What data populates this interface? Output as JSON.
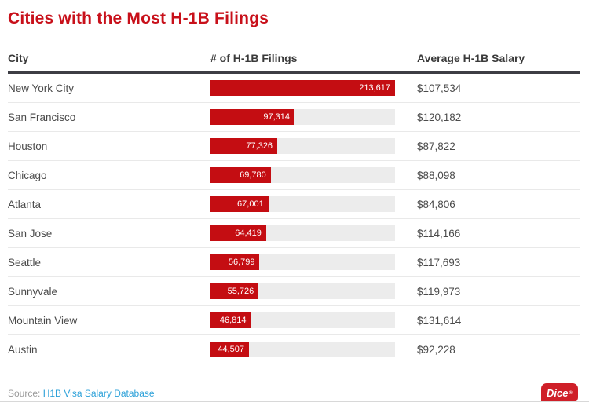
{
  "title": "Cities with the Most H-1B Filings",
  "columns": {
    "city": "City",
    "filings": "# of H-1B Filings",
    "salary": "Average H-1B Salary"
  },
  "source": {
    "label": "Source:",
    "link": "H1B Visa Salary Database"
  },
  "logo": {
    "text": "Dice",
    "mark": "®"
  },
  "colors": {
    "title_red": "#c8101a",
    "bar_red": "#c40d12",
    "bar_track_gray": "#ececec",
    "link_blue": "#2da1d9",
    "logo_red": "#cf1f28"
  },
  "chart_data": {
    "type": "bar",
    "orientation": "horizontal",
    "title": "Cities with the Most H-1B Filings",
    "categories": [
      "New York City",
      "San Francisco",
      "Houston",
      "Chicago",
      "Atlanta",
      "San Jose",
      "Seattle",
      "Sunnyvale",
      "Mountain View",
      "Austin"
    ],
    "series": [
      {
        "name": "# of H-1B Filings",
        "values": [
          213617,
          97314,
          77326,
          69780,
          67001,
          64419,
          56799,
          55726,
          46814,
          44507
        ],
        "labels": [
          "213,617",
          "97,314",
          "77,326",
          "69,780",
          "67,001",
          "64,419",
          "56,799",
          "55,726",
          "46,814",
          "44,507"
        ]
      },
      {
        "name": "Average H-1B Salary",
        "values": [
          107534,
          120182,
          87822,
          88098,
          84806,
          114166,
          117693,
          119973,
          131614,
          92228
        ],
        "labels": [
          "$107,534",
          "$120,182",
          "$87,822",
          "$88,098",
          "$84,806",
          "$114,166",
          "$117,693",
          "$119,973",
          "$131,614",
          "$92,228"
        ]
      }
    ],
    "xlim": [
      0,
      213617
    ],
    "grid": false,
    "legend": "none",
    "value_labels_position": "inside-end"
  }
}
